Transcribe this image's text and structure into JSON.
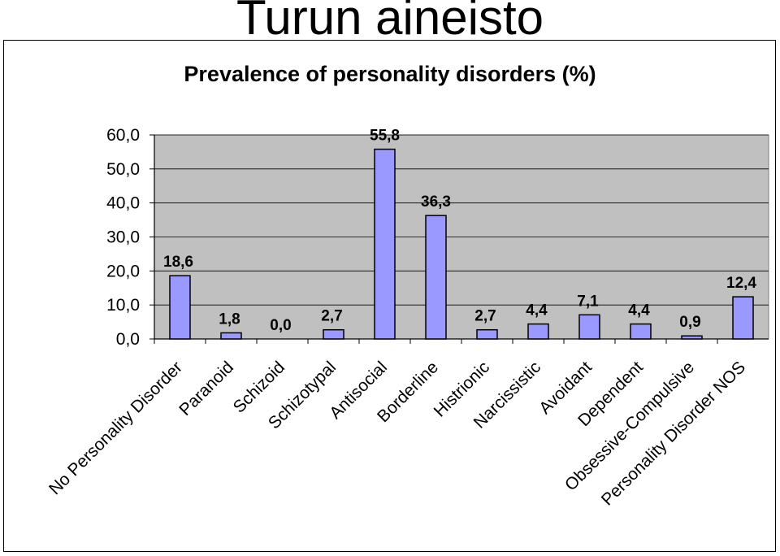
{
  "page_title": "Turun aineisto",
  "chart_data": {
    "type": "bar",
    "title": "Prevalence of personality disorders (%)",
    "xlabel": "",
    "ylabel": "",
    "ylim": [
      0,
      60
    ],
    "yticks": [
      "0,0",
      "10,0",
      "20,0",
      "30,0",
      "40,0",
      "50,0",
      "60,0"
    ],
    "grid": true,
    "categories": [
      "No Personality Disorder",
      "Paranoid",
      "Schizoid",
      "Schizotypal",
      "Antisocial",
      "Borderline",
      "Histrionic",
      "Narcissistic",
      "Avoidant",
      "Dependent",
      "Obsessive-Compulsive",
      "Personality Disorder NOS"
    ],
    "values": [
      18.6,
      1.8,
      0.0,
      2.7,
      55.8,
      36.3,
      2.7,
      4.4,
      7.1,
      4.4,
      0.9,
      12.4
    ],
    "data_labels": [
      "18,6",
      "1,8",
      "0,0",
      "2,7",
      "55,8",
      "36,3",
      "2,7",
      "4,4",
      "7,1",
      "4,4",
      "0,9",
      "12,4"
    ],
    "colors": {
      "bar": "#9999ff",
      "plot_bg": "#c0c0c0",
      "grid": "#000000"
    }
  }
}
